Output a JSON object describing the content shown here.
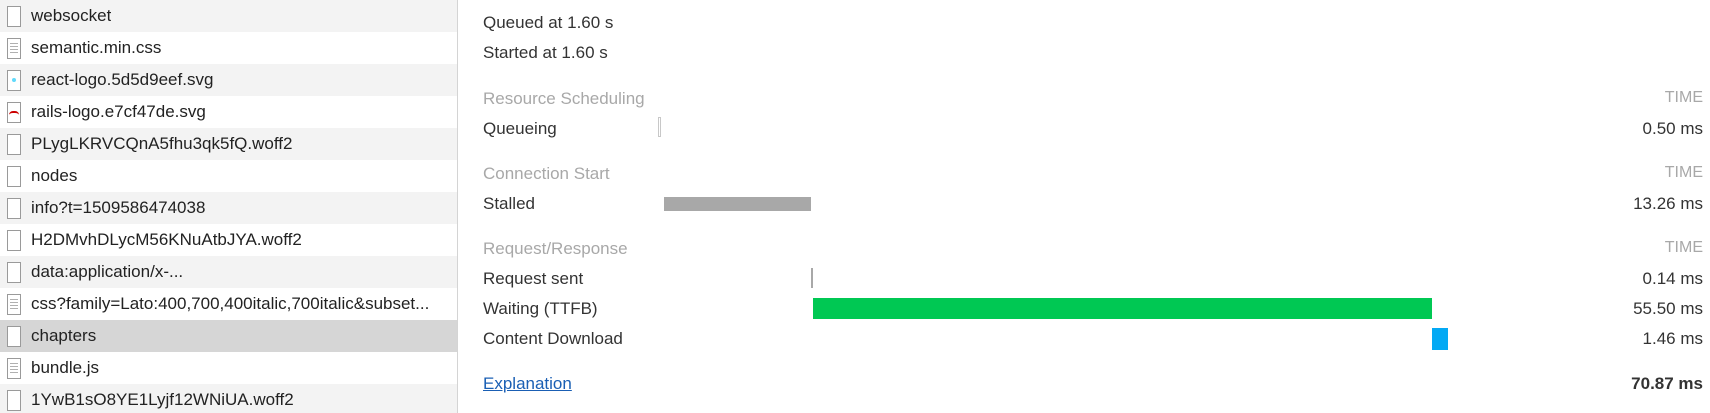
{
  "files": [
    {
      "name": "websocket",
      "icon": "doc-icon"
    },
    {
      "name": "semantic.min.css",
      "icon": "css-file-icon"
    },
    {
      "name": "react-logo.5d5d9eef.svg",
      "icon": "react-image-icon"
    },
    {
      "name": "rails-logo.e7cf47de.svg",
      "icon": "rails-image-icon"
    },
    {
      "name": "PLygLKRVCQnA5fhu3qk5fQ.woff2",
      "icon": "doc-icon"
    },
    {
      "name": "nodes",
      "icon": "doc-icon"
    },
    {
      "name": "info?t=1509586474038",
      "icon": "doc-icon"
    },
    {
      "name": "H2DMvhDLycM56KNuAtbJYA.woff2",
      "icon": "doc-icon"
    },
    {
      "name": "data:application/x-...",
      "icon": "doc-icon"
    },
    {
      "name": "css?family=Lato:400,700,400italic,700italic&subset...",
      "icon": "css-file-icon"
    },
    {
      "name": "chapters",
      "icon": "doc-icon",
      "selected": true
    },
    {
      "name": "bundle.js",
      "icon": "css-file-icon"
    },
    {
      "name": "1YwB1sO8YE1Lyjf12WNiUA.woff2",
      "icon": "doc-icon"
    }
  ],
  "timing": {
    "queued_at": "Queued at 1.60 s",
    "started_at": "Started at 1.60 s",
    "column_label": "TIME",
    "sections": [
      {
        "title": "Resource Scheduling",
        "rows": [
          {
            "label": "Queueing",
            "value": "0.50 ms",
            "start_ms": 0,
            "duration_ms": 0.5,
            "color": "#ffffff"
          }
        ]
      },
      {
        "title": "Connection Start",
        "rows": [
          {
            "label": "Stalled",
            "value": "13.26 ms",
            "start_ms": 0.5,
            "duration_ms": 13.26,
            "color": "#a8a8a8"
          }
        ]
      },
      {
        "title": "Request/Response",
        "rows": [
          {
            "label": "Request sent",
            "value": "0.14 ms",
            "start_ms": 13.76,
            "duration_ms": 0.14,
            "color": "#a8a8a8"
          },
          {
            "label": "Waiting (TTFB)",
            "value": "55.50 ms",
            "start_ms": 13.9,
            "duration_ms": 55.5,
            "color": "#00c853"
          },
          {
            "label": "Content Download",
            "value": "1.46 ms",
            "start_ms": 69.4,
            "duration_ms": 1.46,
            "color": "#03a9f4"
          }
        ]
      }
    ],
    "explanation_link": "Explanation",
    "total": "70.87 ms",
    "total_ms": 70.87
  }
}
